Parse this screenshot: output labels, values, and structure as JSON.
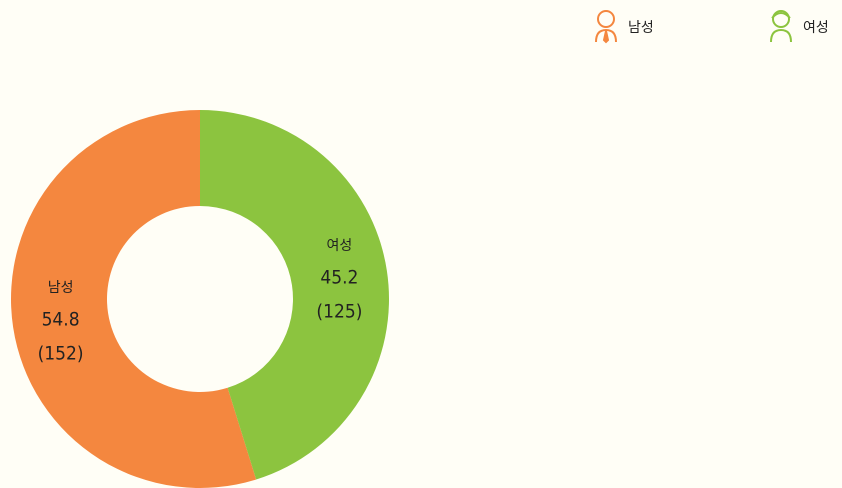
{
  "chart_data": {
    "type": "donut",
    "categories": [
      "남성",
      "여성"
    ],
    "values": [
      54.8,
      45.2
    ],
    "counts": [
      152,
      125
    ],
    "count_labels": [
      "(152)",
      "(125)"
    ],
    "colors": [
      "#f4873f",
      "#8cc43f"
    ],
    "legend": "top-right"
  }
}
